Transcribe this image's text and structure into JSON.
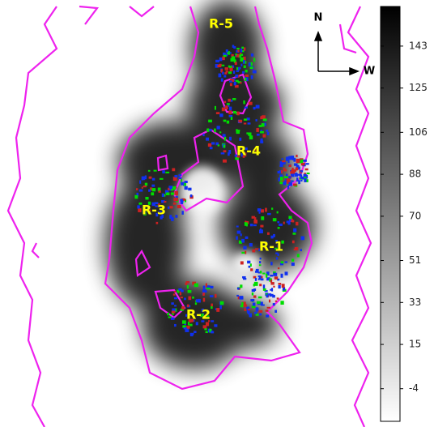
{
  "chart_data": {
    "type": "image",
    "annotations": [
      "R-5",
      "R-4",
      "R-3",
      "R-1",
      "R-2"
    ],
    "compass": {
      "north": "N",
      "west": "W"
    },
    "colorbar": {
      "lim": [
        -18,
        160
      ],
      "ticks": [
        143,
        125,
        106,
        88,
        70,
        51,
        33,
        15,
        -4
      ]
    }
  }
}
